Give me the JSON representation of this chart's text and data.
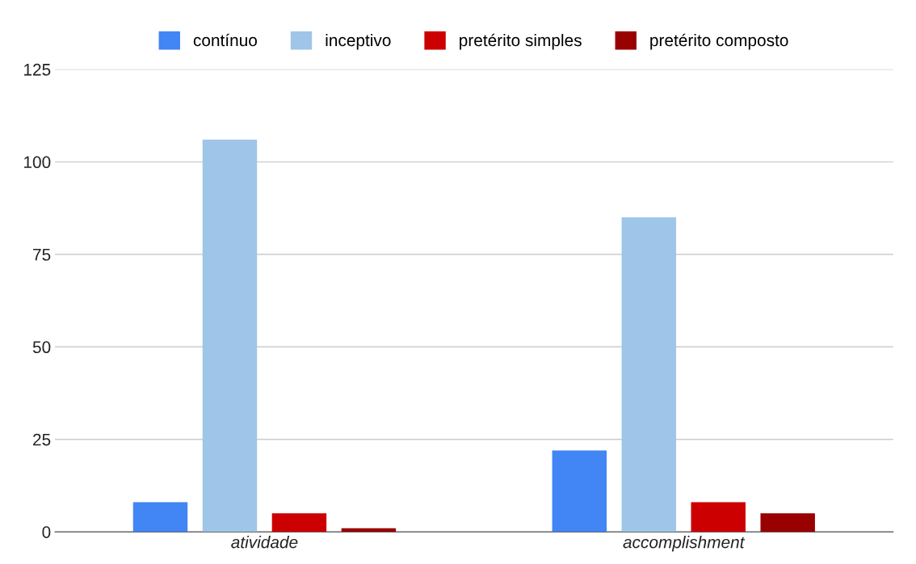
{
  "chart_data": {
    "type": "bar",
    "categories": [
      "atividade",
      "accomplishment"
    ],
    "series": [
      {
        "name": "contínuo",
        "color": "#4285f4",
        "values": [
          8,
          22
        ]
      },
      {
        "name": "inceptivo",
        "color": "#9fc5e8",
        "values": [
          106,
          85
        ]
      },
      {
        "name": "pretérito simples",
        "color": "#cc0000",
        "values": [
          5,
          8
        ]
      },
      {
        "name": "pretérito composto",
        "color": "#990000",
        "values": [
          1,
          5
        ]
      }
    ],
    "ylim": [
      0,
      125
    ],
    "yticks": [
      0,
      25,
      50,
      75,
      100,
      125
    ],
    "grid": "y",
    "legend": "top"
  }
}
